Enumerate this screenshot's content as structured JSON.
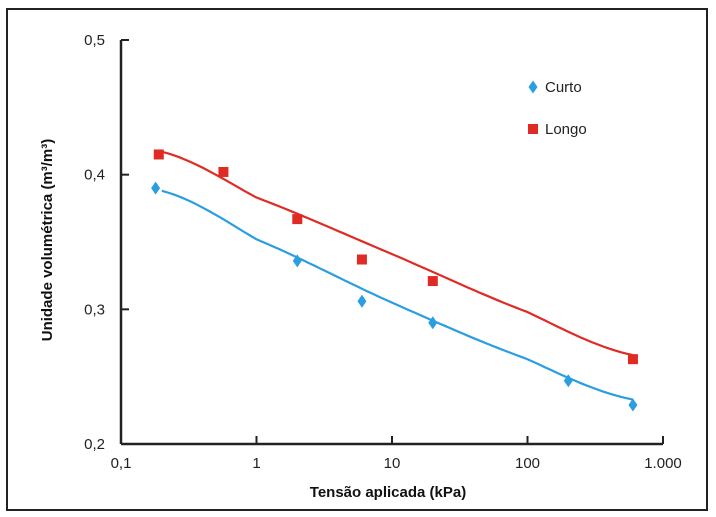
{
  "chart_data": {
    "type": "scatter",
    "xscale": "log",
    "xlabel": "Tensão aplicada (kPa)",
    "ylabel": "Unidade volumétrica (m³/m³)",
    "xlim": [
      0.1,
      1000
    ],
    "ylim": [
      0.2,
      0.5
    ],
    "x_ticks": [
      0.1,
      1,
      10,
      100,
      1000
    ],
    "x_tick_labels": [
      "0,1",
      "1",
      "10",
      "100",
      "1.000"
    ],
    "y_ticks": [
      0.2,
      0.3,
      0.4,
      0.5
    ],
    "y_tick_labels": [
      "0,2",
      "0,3",
      "0,4",
      "0,5"
    ],
    "grid": false,
    "legend_position": "top-right",
    "series": [
      {
        "name": "Curto",
        "color": "#2a9ee0",
        "marker": "diamond",
        "points": [
          {
            "x": 0.18,
            "y": 0.39
          },
          {
            "x": 2,
            "y": 0.336
          },
          {
            "x": 6,
            "y": 0.306
          },
          {
            "x": 20,
            "y": 0.29
          },
          {
            "x": 200,
            "y": 0.247
          },
          {
            "x": 600,
            "y": 0.229
          }
        ],
        "trend": [
          {
            "x": 0.2,
            "y": 0.388
          },
          {
            "x": 1,
            "y": 0.352
          },
          {
            "x": 10,
            "y": 0.305
          },
          {
            "x": 100,
            "y": 0.263
          },
          {
            "x": 600,
            "y": 0.233
          }
        ]
      },
      {
        "name": "Longo",
        "color": "#e02b25",
        "marker": "square",
        "points": [
          {
            "x": 0.19,
            "y": 0.415
          },
          {
            "x": 0.57,
            "y": 0.402
          },
          {
            "x": 2,
            "y": 0.367
          },
          {
            "x": 6,
            "y": 0.337
          },
          {
            "x": 20,
            "y": 0.321
          },
          {
            "x": 600,
            "y": 0.263
          }
        ],
        "trend": [
          {
            "x": 0.2,
            "y": 0.417
          },
          {
            "x": 1,
            "y": 0.383
          },
          {
            "x": 10,
            "y": 0.341
          },
          {
            "x": 100,
            "y": 0.298
          },
          {
            "x": 600,
            "y": 0.266
          }
        ]
      }
    ]
  }
}
